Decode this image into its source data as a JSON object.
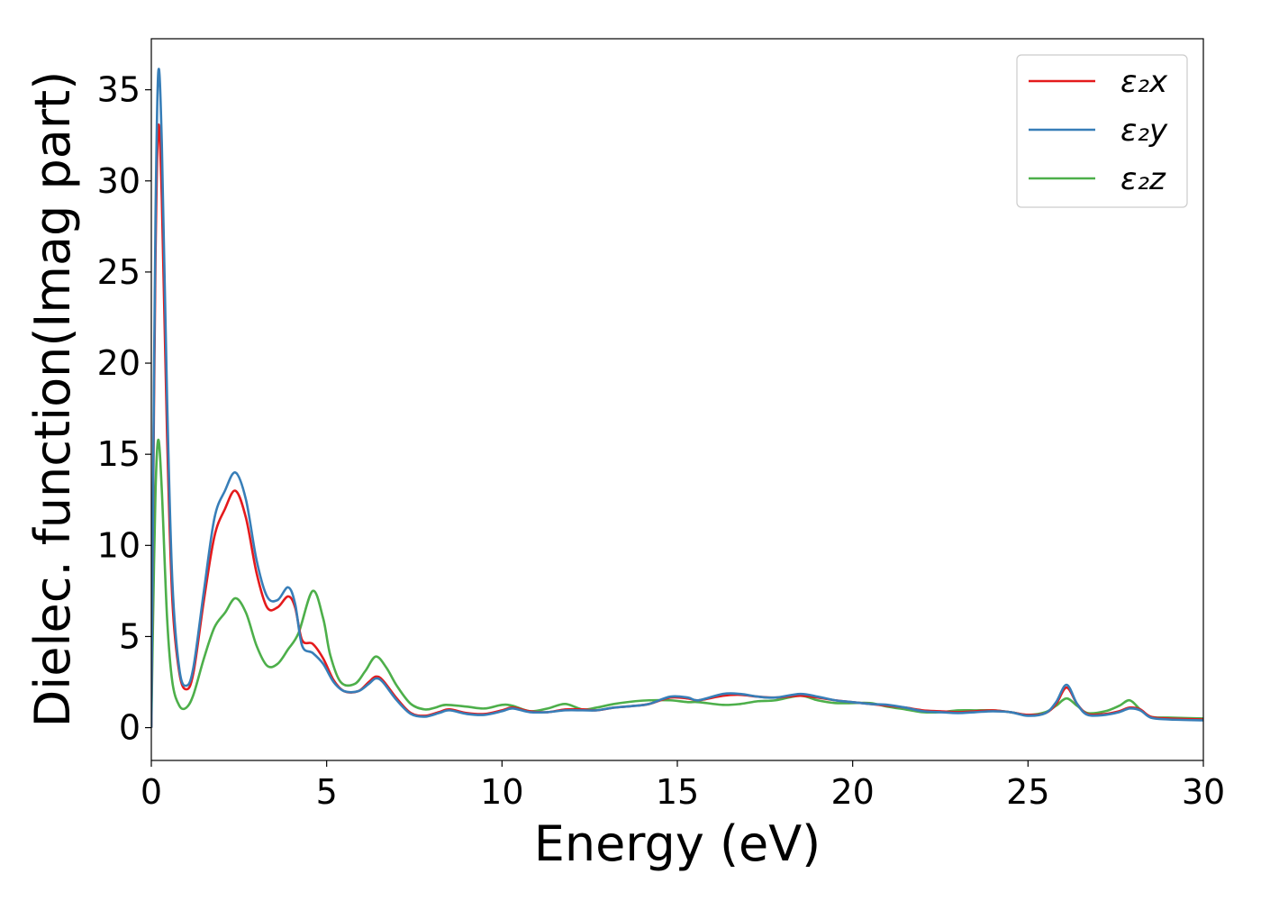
{
  "chart_data": {
    "type": "line",
    "xlabel": "Energy (eV)",
    "ylabel": "Dielec. function(Imag part)",
    "xlim": [
      0,
      30
    ],
    "ylim": [
      -1.8,
      37.8
    ],
    "xticks": [
      0,
      5,
      10,
      15,
      20,
      25,
      30
    ],
    "yticks": [
      0,
      5,
      10,
      15,
      20,
      25,
      30,
      35
    ],
    "grid": false,
    "legend_position": "top-right",
    "series": [
      {
        "name": "ε₂x",
        "color": "#e41a1c",
        "points": [
          [
            0,
            0
          ],
          [
            0.05,
            12
          ],
          [
            0.12,
            26
          ],
          [
            0.2,
            33
          ],
          [
            0.3,
            29
          ],
          [
            0.45,
            16
          ],
          [
            0.6,
            7
          ],
          [
            0.8,
            3
          ],
          [
            1.0,
            2.1
          ],
          [
            1.2,
            3
          ],
          [
            1.5,
            7
          ],
          [
            1.8,
            10.5
          ],
          [
            2.1,
            12
          ],
          [
            2.4,
            13
          ],
          [
            2.7,
            11.5
          ],
          [
            3.0,
            8.5
          ],
          [
            3.3,
            6.6
          ],
          [
            3.6,
            6.6
          ],
          [
            3.9,
            7.2
          ],
          [
            4.1,
            6.6
          ],
          [
            4.3,
            4.8
          ],
          [
            4.6,
            4.6
          ],
          [
            4.9,
            3.8
          ],
          [
            5.2,
            2.6
          ],
          [
            5.5,
            2.0
          ],
          [
            5.9,
            2.0
          ],
          [
            6.2,
            2.5
          ],
          [
            6.4,
            2.8
          ],
          [
            6.6,
            2.6
          ],
          [
            7.0,
            1.6
          ],
          [
            7.4,
            0.8
          ],
          [
            7.8,
            0.65
          ],
          [
            8.2,
            0.85
          ],
          [
            8.5,
            1.0
          ],
          [
            9.0,
            0.8
          ],
          [
            9.5,
            0.75
          ],
          [
            10.0,
            0.95
          ],
          [
            10.3,
            1.1
          ],
          [
            10.8,
            0.9
          ],
          [
            11.3,
            0.85
          ],
          [
            11.8,
            1.0
          ],
          [
            12.3,
            1.0
          ],
          [
            12.7,
            0.95
          ],
          [
            13.2,
            1.1
          ],
          [
            13.8,
            1.2
          ],
          [
            14.2,
            1.3
          ],
          [
            14.8,
            1.65
          ],
          [
            15.3,
            1.6
          ],
          [
            15.6,
            1.5
          ],
          [
            16.3,
            1.75
          ],
          [
            16.8,
            1.8
          ],
          [
            17.3,
            1.7
          ],
          [
            17.8,
            1.65
          ],
          [
            18.5,
            1.75
          ],
          [
            19.0,
            1.65
          ],
          [
            19.5,
            1.5
          ],
          [
            20.0,
            1.4
          ],
          [
            20.5,
            1.3
          ],
          [
            21.0,
            1.2
          ],
          [
            21.5,
            1.1
          ],
          [
            22.0,
            0.95
          ],
          [
            22.5,
            0.9
          ],
          [
            23.0,
            0.85
          ],
          [
            23.5,
            0.9
          ],
          [
            24.0,
            0.95
          ],
          [
            24.5,
            0.85
          ],
          [
            25.0,
            0.7
          ],
          [
            25.5,
            0.8
          ],
          [
            25.8,
            1.3
          ],
          [
            26.1,
            2.2
          ],
          [
            26.4,
            1.3
          ],
          [
            26.7,
            0.75
          ],
          [
            27.2,
            0.75
          ],
          [
            27.6,
            0.9
          ],
          [
            27.9,
            1.1
          ],
          [
            28.2,
            1.0
          ],
          [
            28.5,
            0.6
          ],
          [
            29.0,
            0.5
          ],
          [
            30,
            0.45
          ]
        ]
      },
      {
        "name": "ε₂y",
        "color": "#377eb8",
        "points": [
          [
            0,
            0
          ],
          [
            0.05,
            13
          ],
          [
            0.12,
            28
          ],
          [
            0.2,
            36
          ],
          [
            0.3,
            32
          ],
          [
            0.45,
            18
          ],
          [
            0.6,
            8
          ],
          [
            0.8,
            3.2
          ],
          [
            1.0,
            2.3
          ],
          [
            1.2,
            3.3
          ],
          [
            1.5,
            7.5
          ],
          [
            1.8,
            11.5
          ],
          [
            2.1,
            13
          ],
          [
            2.4,
            14
          ],
          [
            2.7,
            12.5
          ],
          [
            3.0,
            9.2
          ],
          [
            3.3,
            7.2
          ],
          [
            3.6,
            7
          ],
          [
            3.9,
            7.7
          ],
          [
            4.1,
            6.8
          ],
          [
            4.3,
            4.5
          ],
          [
            4.6,
            4.1
          ],
          [
            4.9,
            3.5
          ],
          [
            5.2,
            2.5
          ],
          [
            5.5,
            2.0
          ],
          [
            5.9,
            2.0
          ],
          [
            6.2,
            2.4
          ],
          [
            6.4,
            2.7
          ],
          [
            6.6,
            2.5
          ],
          [
            7.0,
            1.5
          ],
          [
            7.4,
            0.75
          ],
          [
            7.8,
            0.6
          ],
          [
            8.2,
            0.8
          ],
          [
            8.5,
            0.95
          ],
          [
            9.0,
            0.75
          ],
          [
            9.5,
            0.7
          ],
          [
            10.0,
            0.9
          ],
          [
            10.3,
            1.05
          ],
          [
            10.8,
            0.85
          ],
          [
            11.3,
            0.85
          ],
          [
            11.8,
            0.95
          ],
          [
            12.3,
            0.95
          ],
          [
            12.7,
            0.95
          ],
          [
            13.2,
            1.1
          ],
          [
            13.8,
            1.2
          ],
          [
            14.2,
            1.3
          ],
          [
            14.8,
            1.7
          ],
          [
            15.3,
            1.65
          ],
          [
            15.6,
            1.5
          ],
          [
            16.3,
            1.85
          ],
          [
            16.8,
            1.85
          ],
          [
            17.3,
            1.7
          ],
          [
            17.8,
            1.65
          ],
          [
            18.5,
            1.85
          ],
          [
            19.0,
            1.7
          ],
          [
            19.5,
            1.5
          ],
          [
            20.0,
            1.4
          ],
          [
            20.5,
            1.3
          ],
          [
            21.0,
            1.25
          ],
          [
            21.5,
            1.1
          ],
          [
            22.0,
            0.9
          ],
          [
            22.5,
            0.85
          ],
          [
            23.0,
            0.8
          ],
          [
            23.5,
            0.85
          ],
          [
            24.0,
            0.9
          ],
          [
            24.5,
            0.85
          ],
          [
            25.0,
            0.65
          ],
          [
            25.5,
            0.8
          ],
          [
            25.8,
            1.4
          ],
          [
            26.1,
            2.35
          ],
          [
            26.4,
            1.3
          ],
          [
            26.7,
            0.7
          ],
          [
            27.2,
            0.7
          ],
          [
            27.6,
            0.85
          ],
          [
            27.9,
            1.05
          ],
          [
            28.2,
            0.95
          ],
          [
            28.5,
            0.55
          ],
          [
            29.0,
            0.45
          ],
          [
            30,
            0.4
          ]
        ]
      },
      {
        "name": "ε₂z",
        "color": "#4daf4a",
        "points": [
          [
            0,
            0
          ],
          [
            0.05,
            6
          ],
          [
            0.12,
            13
          ],
          [
            0.2,
            15.8
          ],
          [
            0.3,
            13
          ],
          [
            0.45,
            6
          ],
          [
            0.6,
            2.5
          ],
          [
            0.8,
            1.2
          ],
          [
            1.0,
            1.1
          ],
          [
            1.2,
            1.8
          ],
          [
            1.5,
            3.8
          ],
          [
            1.8,
            5.5
          ],
          [
            2.1,
            6.3
          ],
          [
            2.4,
            7.1
          ],
          [
            2.7,
            6.3
          ],
          [
            3.0,
            4.5
          ],
          [
            3.3,
            3.4
          ],
          [
            3.6,
            3.5
          ],
          [
            3.9,
            4.3
          ],
          [
            4.2,
            5.2
          ],
          [
            4.6,
            7.5
          ],
          [
            4.9,
            6
          ],
          [
            5.1,
            4
          ],
          [
            5.4,
            2.5
          ],
          [
            5.8,
            2.4
          ],
          [
            6.1,
            3.1
          ],
          [
            6.4,
            3.9
          ],
          [
            6.7,
            3.3
          ],
          [
            7.0,
            2.3
          ],
          [
            7.4,
            1.3
          ],
          [
            7.8,
            1.0
          ],
          [
            8.1,
            1.1
          ],
          [
            8.4,
            1.25
          ],
          [
            9.0,
            1.15
          ],
          [
            9.5,
            1.05
          ],
          [
            10.0,
            1.25
          ],
          [
            10.3,
            1.2
          ],
          [
            10.8,
            0.9
          ],
          [
            11.3,
            1.05
          ],
          [
            11.8,
            1.3
          ],
          [
            12.3,
            1.0
          ],
          [
            12.7,
            1.1
          ],
          [
            13.2,
            1.3
          ],
          [
            13.8,
            1.45
          ],
          [
            14.2,
            1.5
          ],
          [
            14.8,
            1.5
          ],
          [
            15.3,
            1.4
          ],
          [
            15.6,
            1.4
          ],
          [
            16.3,
            1.25
          ],
          [
            16.8,
            1.3
          ],
          [
            17.3,
            1.45
          ],
          [
            17.8,
            1.5
          ],
          [
            18.5,
            1.75
          ],
          [
            19.0,
            1.5
          ],
          [
            19.5,
            1.35
          ],
          [
            20.0,
            1.35
          ],
          [
            20.5,
            1.35
          ],
          [
            21.0,
            1.15
          ],
          [
            21.5,
            1.0
          ],
          [
            22.0,
            0.85
          ],
          [
            22.5,
            0.85
          ],
          [
            23.0,
            0.95
          ],
          [
            23.5,
            0.95
          ],
          [
            24.0,
            0.95
          ],
          [
            24.5,
            0.85
          ],
          [
            25.0,
            0.7
          ],
          [
            25.5,
            0.85
          ],
          [
            25.8,
            1.2
          ],
          [
            26.1,
            1.6
          ],
          [
            26.4,
            1.2
          ],
          [
            26.7,
            0.8
          ],
          [
            27.2,
            0.9
          ],
          [
            27.6,
            1.2
          ],
          [
            27.9,
            1.5
          ],
          [
            28.2,
            1.0
          ],
          [
            28.5,
            0.6
          ],
          [
            29.0,
            0.55
          ],
          [
            30,
            0.5
          ]
        ]
      }
    ]
  }
}
